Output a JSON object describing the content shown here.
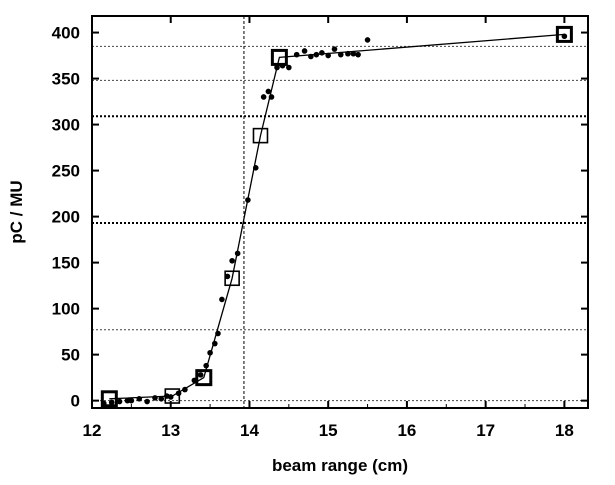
{
  "chart_data": {
    "type": "scatter",
    "xlabel": "beam range  (cm)",
    "ylabel": "pC / MU",
    "xlim": [
      12,
      18.3
    ],
    "ylim": [
      -8,
      418
    ],
    "x_ticks": [
      12,
      13,
      14,
      15,
      16,
      17,
      18
    ],
    "y_ticks": [
      0,
      50,
      100,
      150,
      200,
      250,
      300,
      350,
      400
    ],
    "reference_lines": {
      "vertical_dashed_x": 13.93,
      "horizontal_thin_dotted_y": [
        385,
        348,
        77,
        0
      ],
      "horizontal_heavy_dotted_y": [
        309,
        193
      ]
    },
    "series": [
      {
        "style": "measured-points",
        "x": [
          12.15,
          12.25,
          12.35,
          12.45,
          12.5,
          12.6,
          12.7,
          12.8,
          12.88,
          12.95,
          13.0,
          13.1,
          13.18,
          13.3,
          13.38,
          13.45,
          13.5,
          13.56,
          13.6,
          13.65,
          13.72,
          13.78,
          13.85,
          13.98,
          14.08,
          14.18,
          14.24,
          14.28,
          14.35,
          14.42,
          14.5,
          14.6,
          14.7,
          14.78,
          14.85,
          14.92,
          15.0,
          15.08,
          15.16,
          15.25,
          15.32,
          15.38,
          15.5,
          18.0
        ],
        "y": [
          -3,
          -2,
          -1,
          0,
          0,
          2,
          -1,
          3,
          2,
          5,
          4,
          8,
          12,
          22,
          28,
          38,
          52,
          62,
          73,
          110,
          135,
          152,
          160,
          218,
          253,
          330,
          336,
          330,
          362,
          364,
          362,
          376,
          380,
          374,
          376,
          378,
          375,
          382,
          376,
          377,
          377,
          376,
          392,
          396
        ]
      },
      {
        "style": "square-markers-with-line",
        "x": [
          12.22,
          13.02,
          13.42,
          13.78,
          14.14,
          14.38,
          18.0
        ],
        "y": [
          2,
          5,
          25,
          133,
          288,
          373,
          398
        ]
      }
    ]
  },
  "axes": {
    "xlabel": "beam range  (cm)",
    "ylabel": "pC / MU"
  }
}
